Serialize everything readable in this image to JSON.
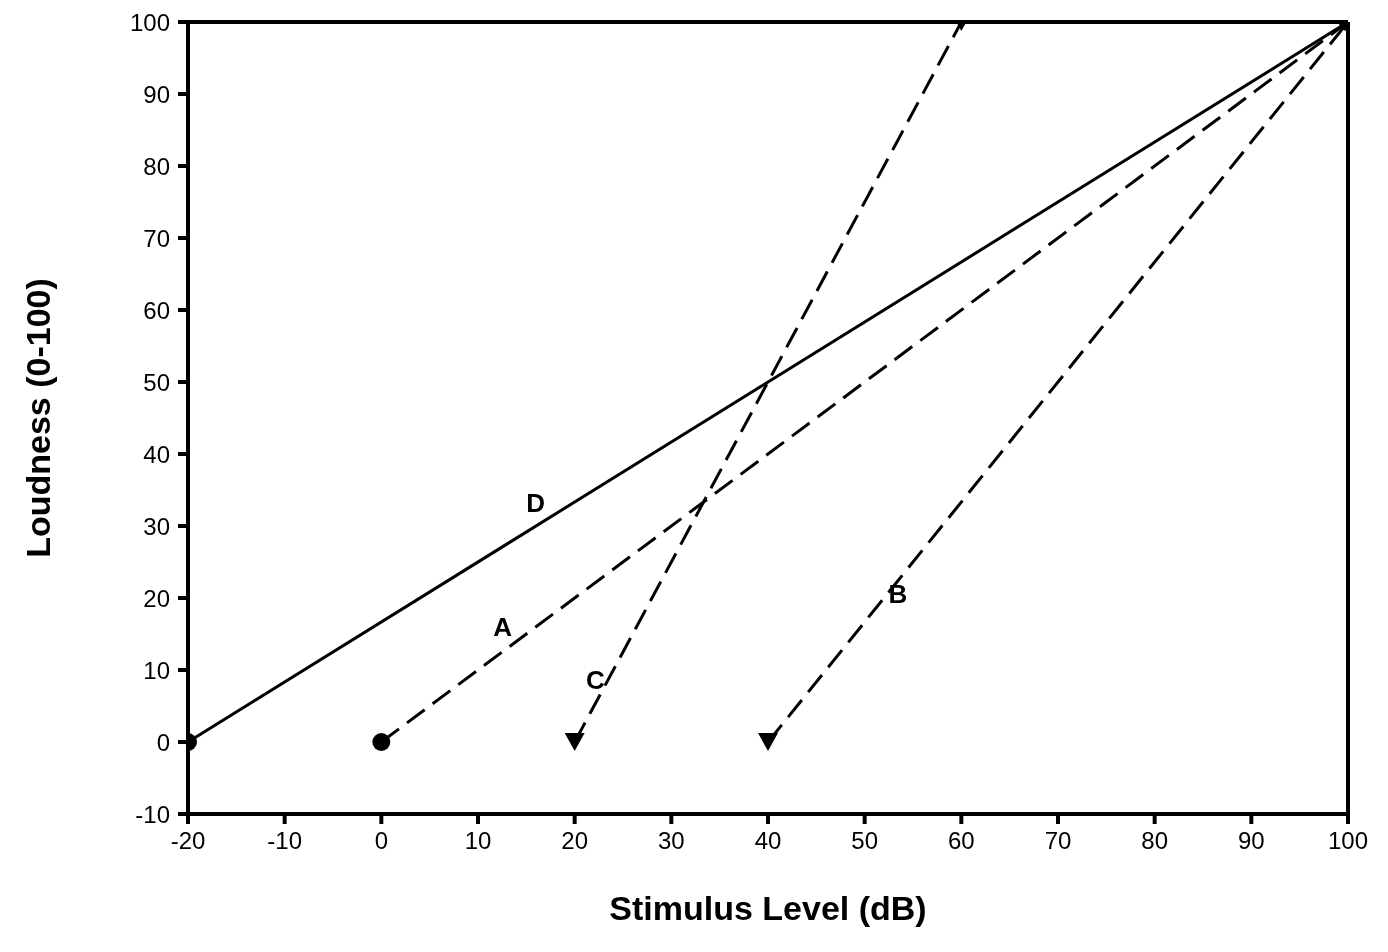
{
  "chart_data": {
    "type": "line",
    "xlabel": "Stimulus Level (dB)",
    "ylabel": "Loudness (0-100)",
    "xlim": [
      -20,
      100
    ],
    "xticks": [
      -20,
      -10,
      0,
      10,
      20,
      30,
      40,
      50,
      60,
      70,
      80,
      90,
      100
    ],
    "ylim": [
      -10,
      100
    ],
    "yticks": [
      -10,
      0,
      10,
      20,
      30,
      40,
      50,
      60,
      70,
      80,
      90,
      100
    ],
    "series": [
      {
        "name": "D",
        "color": "#000000",
        "x": [
          -20,
          100
        ],
        "values": [
          0,
          100
        ],
        "line_style": "solid",
        "marker": "circle"
      },
      {
        "name": "A",
        "color": "#000000",
        "x": [
          0,
          100
        ],
        "values": [
          0,
          100
        ],
        "line_style": "dashed",
        "marker": "circle"
      },
      {
        "name": "C",
        "color": "#000000",
        "x": [
          20,
          60
        ],
        "values": [
          0,
          100
        ],
        "line_style": "dashed",
        "marker": "triangle"
      },
      {
        "name": "B",
        "color": "#000000",
        "x": [
          40,
          100
        ],
        "values": [
          0,
          100
        ],
        "line_style": "dashed",
        "marker": "triangle"
      }
    ]
  }
}
